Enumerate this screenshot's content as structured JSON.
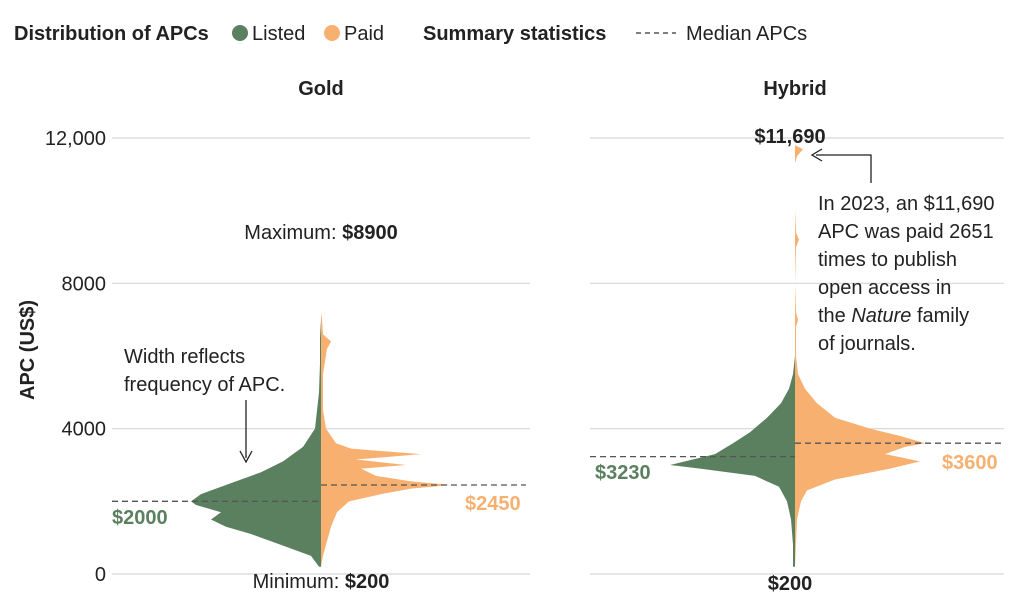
{
  "legend": {
    "distribution_title": "Distribution of APCs",
    "listed_label": "Listed",
    "paid_label": "Paid",
    "summary_title": "Summary statistics",
    "median_label": "Median APCs"
  },
  "colors": {
    "listed": "#5b8060",
    "paid": "#f7b070",
    "grid": "#d6d6d6",
    "text": "#222222"
  },
  "chart_data": {
    "type": "violin",
    "ylabel": "APC (US$)",
    "ylim": [
      0,
      12000
    ],
    "yticks": [
      {
        "value": 0,
        "label": "0"
      },
      {
        "value": 4000,
        "label": "4000"
      },
      {
        "value": 8000,
        "label": "8000"
      },
      {
        "value": 12000,
        "label": "12,000"
      }
    ],
    "panels": [
      {
        "title": "Gold",
        "listed": {
          "median": 2000,
          "median_label": "$2000",
          "density": [
            [
              200,
              2
            ],
            [
              500,
              10
            ],
            [
              800,
              40
            ],
            [
              1100,
              70
            ],
            [
              1300,
              95
            ],
            [
              1500,
              110
            ],
            [
              1700,
              100
            ],
            [
              1900,
              125
            ],
            [
              2000,
              130
            ],
            [
              2200,
              120
            ],
            [
              2500,
              90
            ],
            [
              2800,
              60
            ],
            [
              3100,
              38
            ],
            [
              3500,
              18
            ],
            [
              4000,
              6
            ],
            [
              4500,
              4
            ],
            [
              5000,
              2
            ],
            [
              5800,
              1
            ],
            [
              6500,
              1
            ],
            [
              7000,
              0
            ]
          ]
        },
        "paid": {
          "median": 2450,
          "median_label": "$2450",
          "density": [
            [
              200,
              0
            ],
            [
              500,
              2
            ],
            [
              900,
              6
            ],
            [
              1300,
              10
            ],
            [
              1700,
              16
            ],
            [
              2000,
              28
            ],
            [
              2200,
              60
            ],
            [
              2350,
              90
            ],
            [
              2450,
              130
            ],
            [
              2550,
              90
            ],
            [
              2700,
              55
            ],
            [
              2900,
              40
            ],
            [
              3000,
              85
            ],
            [
              3150,
              35
            ],
            [
              3300,
              100
            ],
            [
              3450,
              30
            ],
            [
              3600,
              15
            ],
            [
              3800,
              10
            ],
            [
              4000,
              5
            ],
            [
              4500,
              2
            ],
            [
              5500,
              2
            ],
            [
              6200,
              6
            ],
            [
              6400,
              10
            ],
            [
              6600,
              2
            ],
            [
              7000,
              1
            ],
            [
              7200,
              0
            ]
          ]
        },
        "annotations": {
          "maximum_prefix": "Maximum: ",
          "maximum_value": "$8900",
          "minimum_prefix": "Minimum: ",
          "minimum_value": "$200",
          "width_note_line1": "Width reflects",
          "width_note_line2": "frequency of APC."
        }
      },
      {
        "title": "Hybrid",
        "listed": {
          "median": 3230,
          "median_label": "$3230",
          "density": [
            [
              200,
              2
            ],
            [
              800,
              2
            ],
            [
              1500,
              4
            ],
            [
              2000,
              8
            ],
            [
              2400,
              16
            ],
            [
              2700,
              40
            ],
            [
              2900,
              95
            ],
            [
              3000,
              125
            ],
            [
              3100,
              110
            ],
            [
              3300,
              80
            ],
            [
              3600,
              62
            ],
            [
              3900,
              45
            ],
            [
              4300,
              28
            ],
            [
              4700,
              14
            ],
            [
              5100,
              6
            ],
            [
              5500,
              2
            ],
            [
              6000,
              0
            ]
          ]
        },
        "paid": {
          "median": 3600,
          "median_label": "$3600",
          "density": [
            [
              200,
              0
            ],
            [
              1500,
              2
            ],
            [
              2000,
              6
            ],
            [
              2300,
              12
            ],
            [
              2600,
              40
            ],
            [
              2900,
              95
            ],
            [
              3100,
              125
            ],
            [
              3300,
              90
            ],
            [
              3500,
              110
            ],
            [
              3600,
              130
            ],
            [
              3800,
              105
            ],
            [
              4000,
              75
            ],
            [
              4300,
              40
            ],
            [
              4700,
              22
            ],
            [
              5100,
              10
            ],
            [
              5500,
              3
            ],
            [
              6000,
              1
            ],
            [
              6800,
              1
            ],
            [
              7000,
              3
            ],
            [
              7200,
              1
            ],
            [
              8000,
              0
            ],
            [
              9000,
              1
            ],
            [
              9200,
              4
            ],
            [
              9400,
              1
            ],
            [
              10000,
              0
            ],
            [
              11300,
              0
            ],
            [
              11500,
              2
            ],
            [
              11690,
              8
            ],
            [
              11800,
              0
            ]
          ]
        },
        "annotations": {
          "maximum_value": "$11,690",
          "minimum_value": "$200",
          "note_line1": "In 2023, an $11,690",
          "note_line2": "APC was paid 2651",
          "note_line3": "times to publish",
          "note_line4": "open access in",
          "note_line5_italic": "Nature",
          "note_line5_rest": " family",
          "note_line6": "of journals."
        }
      }
    ]
  }
}
